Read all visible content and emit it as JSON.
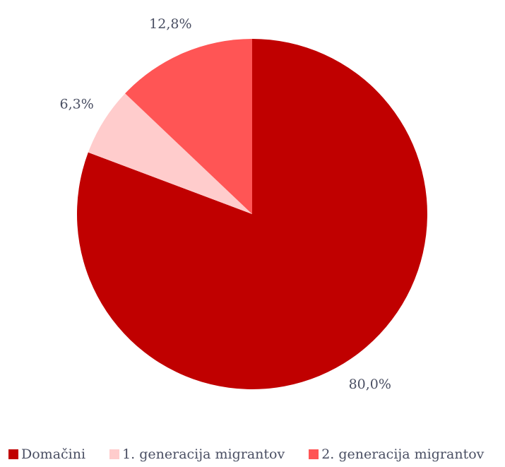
{
  "chart_data": {
    "type": "pie",
    "title": "",
    "categories": [
      "Domačini",
      "1. generacija migrantov",
      "2. generacija migrantov"
    ],
    "values": [
      80.0,
      6.3,
      12.8
    ],
    "labels": [
      "80,0%",
      "6,3%",
      "12,8%"
    ],
    "colors": [
      "#c00000",
      "#ffcccc",
      "#ff5555"
    ],
    "start_angle_deg": 0,
    "direction": "clockwise",
    "legend_position": "bottom"
  }
}
